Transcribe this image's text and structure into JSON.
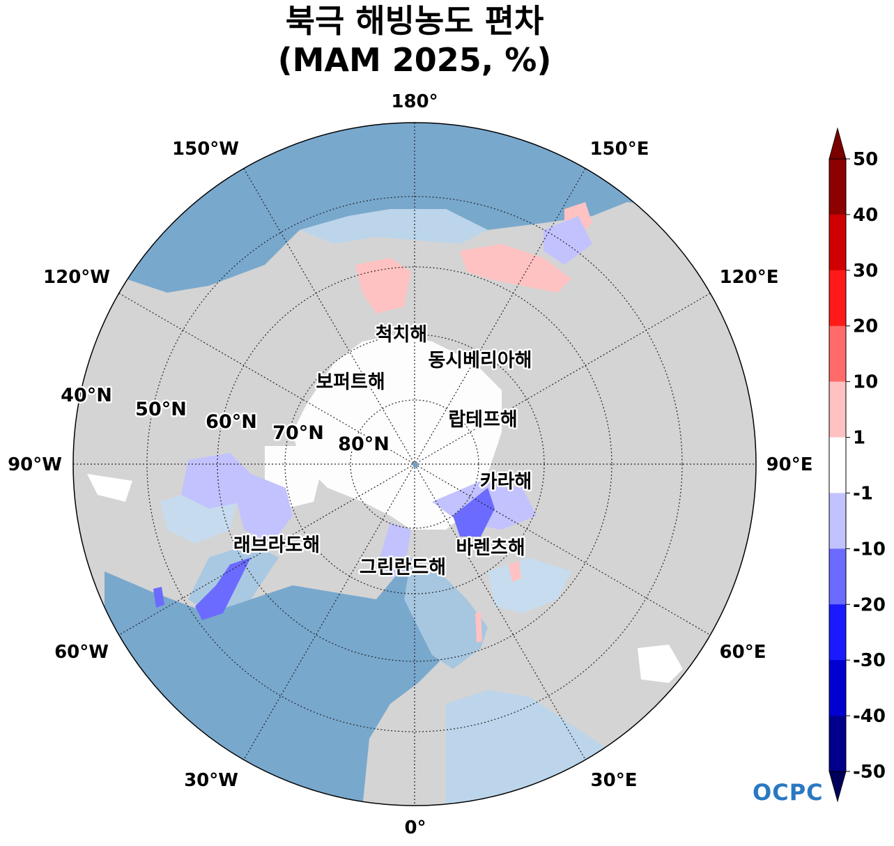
{
  "title": {
    "line1": "북극 해빙농도 편차",
    "line2": "(MAM 2025, %)"
  },
  "map": {
    "projection": "north-polar-stereographic",
    "colors": {
      "ocean": "#7aa7cc",
      "land": "#d4d4d4",
      "ice_core": "#fdfdfd"
    },
    "longitude_labels": [
      {
        "lon": 180,
        "text": "180°"
      },
      {
        "lon": 150,
        "text": "150°E"
      },
      {
        "lon": 120,
        "text": "120°E"
      },
      {
        "lon": 90,
        "text": "90°E"
      },
      {
        "lon": 60,
        "text": "60°E"
      },
      {
        "lon": 30,
        "text": "30°E"
      },
      {
        "lon": 0,
        "text": "0°"
      },
      {
        "lon": -30,
        "text": "30°W"
      },
      {
        "lon": -60,
        "text": "60°W"
      },
      {
        "lon": -90,
        "text": "90°W"
      },
      {
        "lon": -120,
        "text": "120°W"
      },
      {
        "lon": -150,
        "text": "150°W"
      }
    ],
    "latitude_labels": [
      {
        "lat": 40,
        "text": "40°N"
      },
      {
        "lat": 50,
        "text": "50°N"
      },
      {
        "lat": 60,
        "text": "60°N"
      },
      {
        "lat": 70,
        "text": "70°N"
      },
      {
        "lat": 80,
        "text": "80°N"
      }
    ],
    "seas": [
      {
        "name": "척치해"
      },
      {
        "name": "동시베리아해"
      },
      {
        "name": "보퍼트해"
      },
      {
        "name": "랍테프해"
      },
      {
        "name": "카라해"
      },
      {
        "name": "바렌츠해"
      },
      {
        "name": "래브라도해"
      },
      {
        "name": "그린란드해"
      }
    ]
  },
  "colorbar": {
    "ticks": [
      "50",
      "40",
      "30",
      "20",
      "10",
      "1",
      "-1",
      "-10",
      "-20",
      "-30",
      "-40",
      "-50"
    ],
    "bins": [
      {
        "range": "40 to 50",
        "color": "#8c0000"
      },
      {
        "range": "30 to 40",
        "color": "#d10000"
      },
      {
        "range": "20 to 30",
        "color": "#ff1a1a"
      },
      {
        "range": "10 to 20",
        "color": "#ff6b6b"
      },
      {
        "range": "1 to 10",
        "color": "#ffc2c2"
      },
      {
        "range": "-1 to 1",
        "color": "#ffffff"
      },
      {
        "range": "-10 to -1",
        "color": "#c2c2ff"
      },
      {
        "range": "-20 to -10",
        "color": "#6b6bff"
      },
      {
        "range": "-30 to -20",
        "color": "#1a1aff"
      },
      {
        "range": "-40 to -30",
        "color": "#0000d1"
      },
      {
        "range": "-50 to -40",
        "color": "#00008c"
      }
    ],
    "over_color": "#7a0000",
    "under_color": "#00005a"
  },
  "logo": {
    "text": "OCPC"
  }
}
